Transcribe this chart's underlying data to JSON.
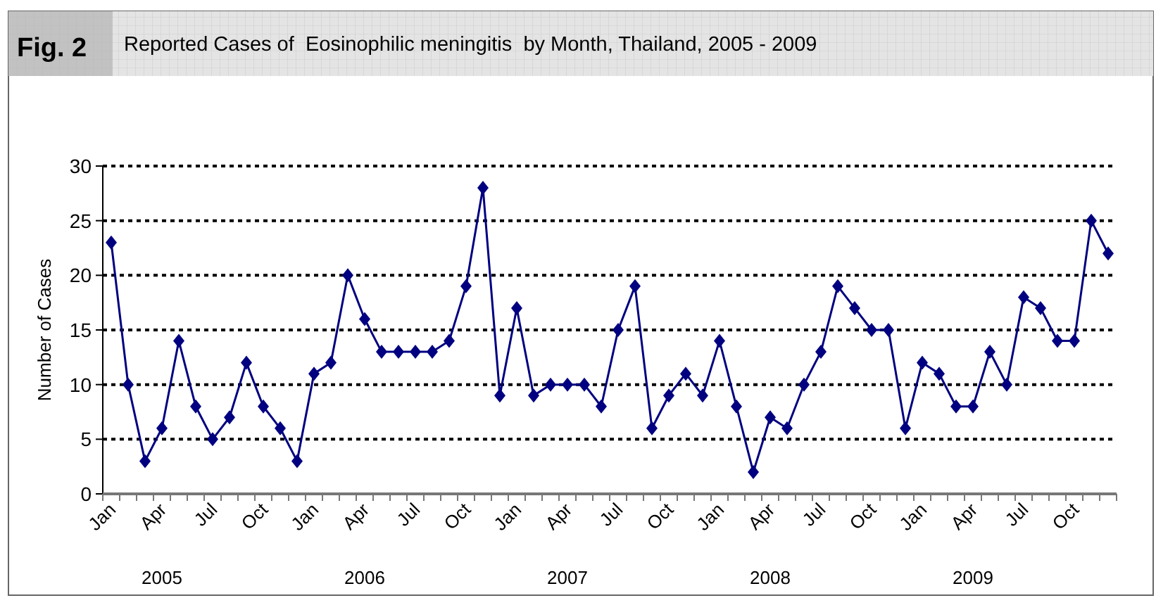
{
  "chart_data": {
    "type": "line",
    "title": "Reported Cases of  Eosinophilic meningitis  by Month, Thailand, 2005 - 2009",
    "ylabel": "Number of Cases",
    "annotations": [
      "Fig. 2",
      "2005",
      "2006",
      "2007",
      "2008",
      "2009"
    ],
    "categories": [
      "Jan",
      null,
      null,
      "Apr",
      null,
      null,
      "Jul",
      null,
      null,
      "Oct",
      null,
      null,
      "Jan",
      null,
      null,
      "Apr",
      null,
      null,
      "Jul",
      null,
      null,
      "Oct",
      null,
      null,
      "Jan",
      null,
      null,
      "Apr",
      null,
      null,
      "Jul",
      null,
      null,
      "Oct",
      null,
      null,
      "Jan",
      null,
      null,
      "Apr",
      null,
      null,
      "Jul",
      null,
      null,
      "Oct",
      null,
      null,
      "Jan",
      null,
      null,
      "Apr",
      null,
      null,
      "Jul",
      null,
      null,
      "Oct",
      null,
      null
    ],
    "series": [
      {
        "color": "#000080",
        "values": [
          23,
          10,
          3,
          6,
          14,
          8,
          5,
          7,
          12,
          8,
          6,
          3,
          11,
          12,
          20,
          16,
          13,
          13,
          13,
          13,
          14,
          19,
          28,
          9,
          17,
          9,
          10,
          10,
          10,
          8,
          15,
          19,
          6,
          9,
          11,
          9,
          14,
          8,
          2,
          7,
          6,
          10,
          13,
          19,
          17,
          15,
          15,
          6,
          12,
          11,
          8,
          8,
          13,
          10,
          18,
          17,
          14,
          14,
          25,
          22
        ]
      }
    ],
    "ylim": [
      0,
      30
    ],
    "yticks": [
      0,
      5,
      10,
      15,
      20,
      25,
      30
    ],
    "grid": "y",
    "marker": "diamond",
    "line_style": "solid"
  }
}
